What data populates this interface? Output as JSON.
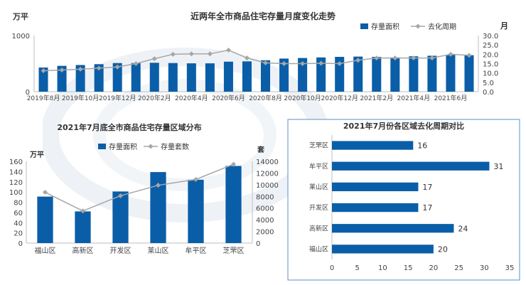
{
  "colors": {
    "bar": "#0a5ea8",
    "line": "#a6a6a6",
    "axis": "#bfbfbf",
    "text": "#333333",
    "frame": "#5b8fc7"
  },
  "chart_data": [
    {
      "type": "bar",
      "title": "近两年全市商品住宅存量月度变化走势",
      "ylabel": "万平",
      "y2label": "月",
      "ylim": [
        0,
        1000
      ],
      "y2lim": [
        0,
        30
      ],
      "yticks": [
        0,
        1000
      ],
      "y2ticks": [
        "0.0",
        "5.0",
        "10.0",
        "15.0",
        "20.0",
        "25.0",
        "30.0"
      ],
      "categories": [
        "2019年8月",
        "2019年9月",
        "2019年10月",
        "2019年11月",
        "2019年12月",
        "2020年1月",
        "2020年2月",
        "2020年3月",
        "2020年4月",
        "2020年5月",
        "2020年6月",
        "2020年7月",
        "2020年8月",
        "2020年9月",
        "2020年10月",
        "2020年11月",
        "2020年12月",
        "2021年1月",
        "2021年2月",
        "2021年3月",
        "2021年4月",
        "2021年5月",
        "2021年6月",
        "2021年7月"
      ],
      "tick_labels": [
        "2019年8月",
        "",
        "2019年10月",
        "",
        "2019年12月",
        "",
        "2020年2月",
        "",
        "2020年4月",
        "",
        "2020年6月",
        "",
        "2020年8月",
        "",
        "2020年10月",
        "",
        "2020年12月",
        "",
        "2021年2月",
        "",
        "2021年4月",
        "",
        "2021年6月",
        ""
      ],
      "series": [
        {
          "name": "存量面积",
          "type": "bar",
          "axis": "left",
          "values": [
            430,
            460,
            475,
            490,
            510,
            510,
            515,
            510,
            505,
            505,
            535,
            540,
            560,
            590,
            600,
            610,
            620,
            625,
            620,
            610,
            630,
            640,
            655,
            650
          ]
        },
        {
          "name": "去化周期",
          "type": "line",
          "axis": "right",
          "values": [
            11.2,
            11.6,
            12.0,
            12.6,
            13.2,
            15.0,
            17.6,
            20.0,
            20.2,
            20.2,
            22.2,
            18.0,
            15.4,
            15.0,
            15.0,
            15.2,
            15.0,
            16.8,
            18.0,
            18.0,
            18.0,
            18.0,
            20.0,
            19.4
          ]
        }
      ],
      "legend": "top-right"
    },
    {
      "type": "bar",
      "title": "2021年7月底全市商品住宅存量区域分布",
      "ylabel": "万平",
      "y2label": "套",
      "ylim": [
        0,
        160
      ],
      "y2lim": [
        0,
        14000
      ],
      "yticks": [
        "0",
        "20",
        "40",
        "60",
        "80",
        "100",
        "120",
        "140",
        "160"
      ],
      "y2ticks": [
        "0",
        "2000",
        "4000",
        "6000",
        "8000",
        "10000",
        "12000",
        "14000"
      ],
      "categories": [
        "福山区",
        "高新区",
        "开发区",
        "莱山区",
        "牟平区",
        "芝罘区"
      ],
      "series": [
        {
          "name": "存量面积",
          "type": "bar",
          "axis": "left",
          "values": [
            91,
            62,
            101,
            139,
            124,
            151
          ]
        },
        {
          "name": "存量套数",
          "type": "line",
          "axis": "right",
          "values": [
            8700,
            5500,
            8100,
            9900,
            10900,
            13500
          ]
        }
      ],
      "legend": "top"
    },
    {
      "type": "bar",
      "orientation": "horizontal",
      "title": "2021年7月份各区域去化周期对比",
      "categories": [
        "芝罘区",
        "牟平区",
        "莱山区",
        "开发区",
        "高新区",
        "福山区"
      ],
      "values": [
        16,
        31,
        17,
        17,
        24,
        20
      ],
      "data_labels": [
        "16",
        "31",
        "17",
        "17",
        "24",
        "20"
      ],
      "xlim": [
        0,
        35
      ],
      "xticks": [
        "0",
        "5",
        "10",
        "15",
        "20",
        "25",
        "30",
        "35"
      ]
    }
  ]
}
